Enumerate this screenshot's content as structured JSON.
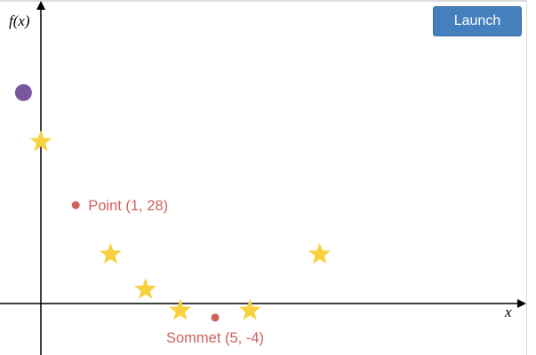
{
  "chart_data": {
    "type": "scatter",
    "xlabel": "x",
    "ylabel": "f(x)",
    "xlim": [
      -1.2,
      13.9
    ],
    "ylim": [
      -14.5,
      86.5
    ],
    "grid": false,
    "series": [
      {
        "marker": "star",
        "color": "#f7d23e",
        "points": [
          [
            0,
            46
          ],
          [
            2,
            14
          ],
          [
            3,
            4
          ],
          [
            4,
            -2
          ],
          [
            6,
            -2
          ],
          [
            8,
            14
          ]
        ]
      },
      {
        "marker": "circle",
        "color": "#7a56a0",
        "points": [
          [
            -0.5,
            60
          ]
        ]
      }
    ],
    "annotations": [
      {
        "text": "Point (1, 28)",
        "x": 1,
        "y": 28,
        "color": "#d0605e",
        "position": "right"
      },
      {
        "text": "Sommet (5, -4)",
        "x": 5,
        "y": -4,
        "color": "#d0605e",
        "position": "below"
      }
    ]
  },
  "toolbar": {
    "launch_label": "Launch",
    "launch_color": "#4480bd"
  }
}
